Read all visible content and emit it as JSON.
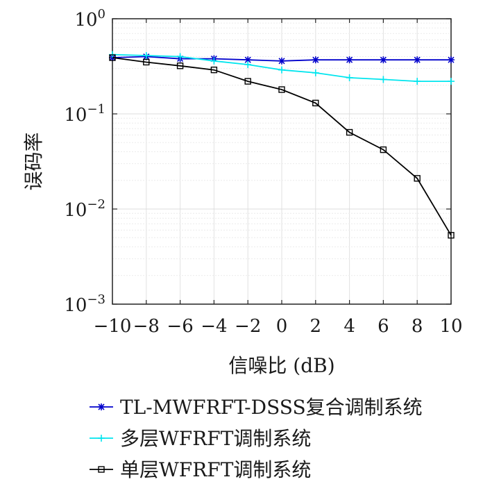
{
  "chart_data": {
    "type": "line",
    "xlabel": "信噪比 (dB)",
    "ylabel": "误码率",
    "x": [
      -10,
      -8,
      -6,
      -4,
      -2,
      0,
      2,
      4,
      6,
      8,
      10
    ],
    "x_tick_labels": [
      "−10",
      "−8",
      "−6",
      "−4",
      "−2",
      "0",
      "2",
      "4",
      "6",
      "8",
      "10"
    ],
    "xlim": [
      -10,
      10
    ],
    "yscale": "log",
    "ylim": [
      0.001,
      1
    ],
    "y_ticks": [
      {
        "base": "10",
        "exp": "0"
      },
      {
        "base": "10",
        "exp": "−1"
      },
      {
        "base": "10",
        "exp": "−2"
      },
      {
        "base": "10",
        "exp": "−3"
      }
    ],
    "grid": true,
    "legend_position": "below",
    "series": [
      {
        "name": "TL-MWFRFT-DSSS复合调制系统",
        "color": "#0000cc",
        "marker": "asterisk",
        "values": [
          0.39,
          0.4,
          0.38,
          0.38,
          0.37,
          0.36,
          0.37,
          0.37,
          0.37,
          0.37,
          0.37
        ]
      },
      {
        "name": "多层WFRFT调制系统",
        "color": "#00e5ee",
        "marker": "plus",
        "values": [
          0.42,
          0.41,
          0.4,
          0.36,
          0.33,
          0.29,
          0.27,
          0.24,
          0.23,
          0.22,
          0.22
        ]
      },
      {
        "name": "单层WFRFT调制系统",
        "color": "#000000",
        "marker": "square",
        "values": [
          0.39,
          0.35,
          0.32,
          0.29,
          0.22,
          0.18,
          0.13,
          0.064,
          0.042,
          0.021,
          0.0053
        ]
      }
    ]
  }
}
